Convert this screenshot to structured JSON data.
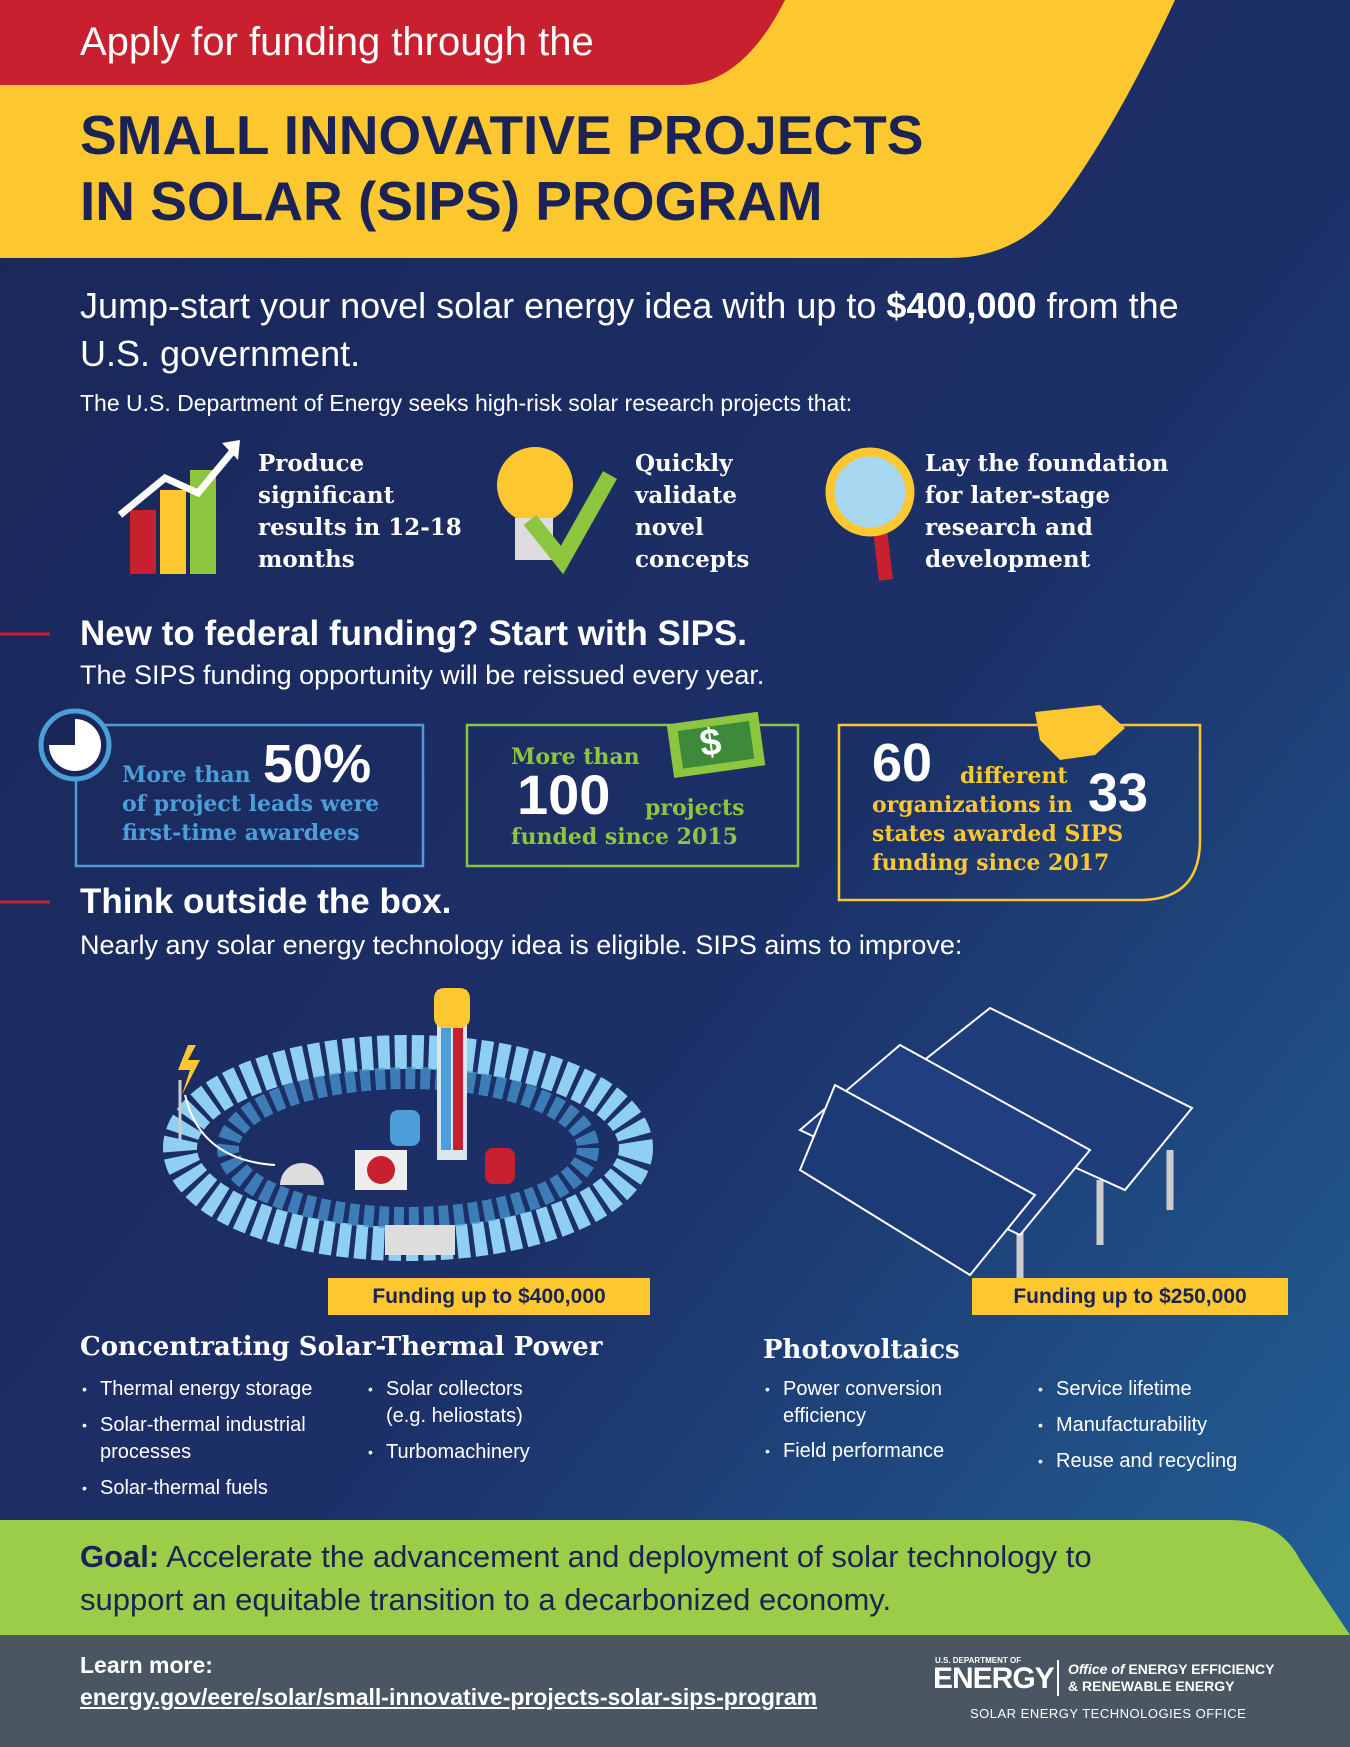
{
  "header": {
    "intro": "Apply for funding through the",
    "title_lines": [
      "SMALL INNOVATIVE PROJECTS",
      "IN SOLAR (SIPS) PROGRAM"
    ]
  },
  "lead": {
    "before": "Jump-start your novel solar energy idea with up to",
    "amount": "$400,000",
    "after": "from the U.S. government."
  },
  "seeks": "The U.S. Department of Energy seeks high-risk solar research projects that:",
  "aims": [
    "Produce significant results in 12-18 months",
    "Quickly validate novel concepts",
    "Lay the foundation for later-stage research and development"
  ],
  "section1": {
    "heading": "New to federal funding? Start with SIPS.",
    "sub": "The SIPS funding opportunity will be reissued every year."
  },
  "stats": [
    {
      "lead": "More than",
      "number": "50%",
      "text": "of project leads were first-time awardees"
    },
    {
      "lead": "More than",
      "number": "100",
      "unit": "projects",
      "text": "funded since 2015"
    },
    {
      "number": "60",
      "unit": "different",
      "mid": "organizations in",
      "number2": "33",
      "text": "states awarded SIPS funding since 2017"
    }
  ],
  "section2": {
    "heading": "Think outside the box.",
    "sub": "Nearly any solar energy technology idea is eligible. SIPS aims to improve:"
  },
  "columns": [
    {
      "funding": "Funding up to $400,000",
      "title": "Concentrating Solar-Thermal Power",
      "items": [
        "Thermal energy storage",
        "Solar-thermal industrial processes",
        "Solar-thermal fuels",
        "Solar collectors (e.g. heliostats)",
        "Turbomachinery"
      ]
    },
    {
      "funding": "Funding up to $250,000",
      "title": "Photovoltaics",
      "items": [
        "Power conversion efficiency",
        "Field performance",
        "Service lifetime",
        "Manufacturability",
        "Reuse and recycling"
      ]
    }
  ],
  "goal": {
    "label": "Goal:",
    "text": "Accelerate the advancement and deployment of solar technology to support an equitable transition to a decarbonized economy."
  },
  "footer": {
    "learn": "Learn more:",
    "url": "energy.gov/eere/solar/small-innovative-projects-solar-sips-program",
    "logo": {
      "dept": "U.S. DEPARTMENT OF",
      "energy": "ENERGY",
      "office": "Office of",
      "eere1": "ENERGY EFFICIENCY",
      "eere2": "& RENEWABLE ENERGY",
      "seto": "SOLAR ENERGY TECHNOLOGIES OFFICE"
    }
  }
}
